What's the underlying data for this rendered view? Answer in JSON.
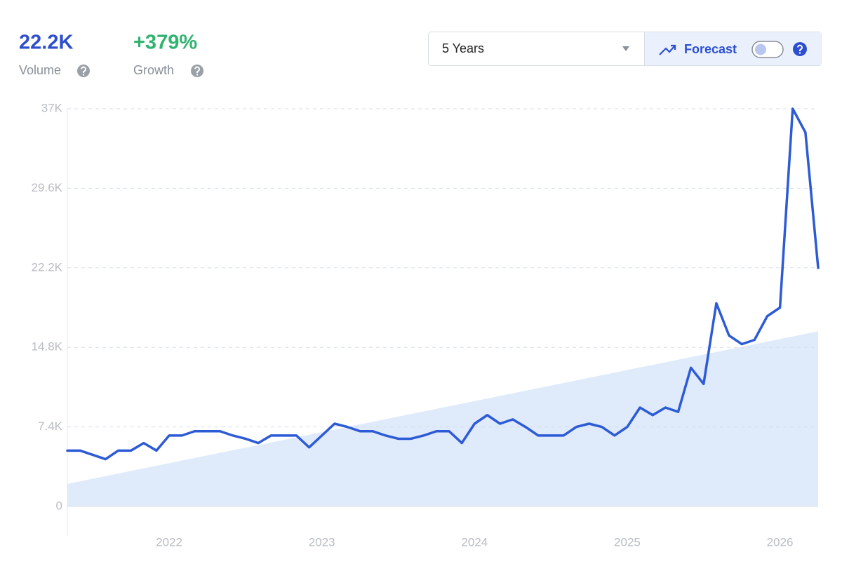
{
  "header": {
    "volume": "22.2K",
    "volume_label": "Volume",
    "growth": "+379%",
    "growth_label": "Growth",
    "range": "5 Years",
    "forecast": "Forecast"
  },
  "chart_data": {
    "type": "line",
    "categories": [
      null,
      null,
      null,
      null,
      null,
      null,
      null,
      null,
      "2022",
      null,
      null,
      null,
      null,
      null,
      null,
      null,
      null,
      null,
      null,
      null,
      "2023",
      null,
      null,
      null,
      null,
      null,
      null,
      null,
      null,
      null,
      null,
      null,
      "2024",
      null,
      null,
      null,
      null,
      null,
      null,
      null,
      null,
      null,
      null,
      null,
      "2025",
      null,
      null,
      null,
      null,
      null,
      null,
      null,
      null,
      null,
      null,
      null,
      "2026",
      null,
      null,
      null
    ],
    "values": [
      5200,
      5200,
      4800,
      4400,
      5200,
      5200,
      5900,
      5200,
      6600,
      6600,
      7000,
      7000,
      7000,
      6600,
      6300,
      5900,
      6600,
      6600,
      6600,
      5500,
      6600,
      7700,
      7400,
      7000,
      7000,
      6600,
      6300,
      6300,
      6600,
      7000,
      7000,
      5900,
      7700,
      8500,
      7700,
      8100,
      7400,
      6600,
      6600,
      6600,
      7400,
      7700,
      7400,
      6600,
      7400,
      9200,
      8500,
      9200,
      8800,
      12900,
      11400,
      18900,
      15900,
      15100,
      15500,
      17700,
      18500,
      37000,
      34800,
      22200
    ],
    "color": "#2d5bd6",
    "trend": [
      2100,
      16300
    ],
    "trend_color": "#dfeafb",
    "ylim": [
      0,
      37000
    ],
    "yticks": [
      0,
      {
        "value": 7400,
        "label": "7.4K"
      },
      {
        "value": 14800,
        "label": "14.8K"
      },
      {
        "value": 22200,
        "label": "22.2K"
      },
      {
        "value": 29600,
        "label": "29.6K"
      },
      {
        "value": 37000,
        "label": "37K"
      }
    ],
    "grid": true
  }
}
